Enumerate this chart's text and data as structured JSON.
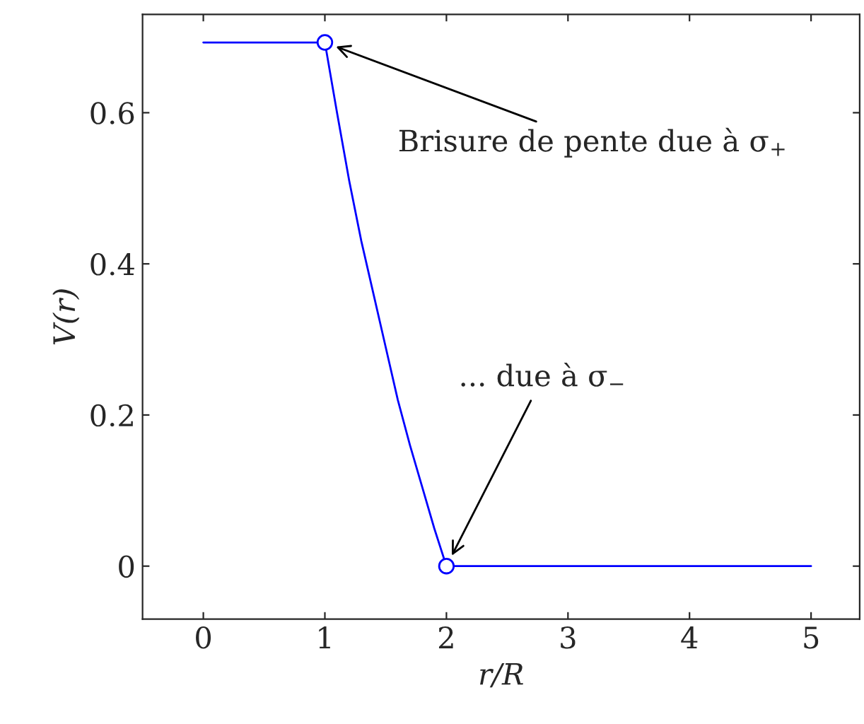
{
  "chart_data": {
    "type": "line",
    "xlabel": "r/R",
    "ylabel": "V(r)",
    "xlim": [
      -0.5,
      5.4
    ],
    "ylim": [
      -0.07,
      0.73
    ],
    "xticks": [
      0,
      1,
      2,
      3,
      4,
      5
    ],
    "yticks": [
      0,
      0.2,
      0.4,
      0.6
    ],
    "grid": false,
    "legend": false,
    "series": [
      {
        "color": "#0000ff",
        "marker": "none",
        "x": [
          0,
          1,
          1.1,
          1.2,
          1.3,
          1.4,
          1.5,
          1.6,
          1.7,
          1.8,
          1.9,
          2,
          5
        ],
        "values": [
          0.693,
          0.693,
          0.6,
          0.51,
          0.43,
          0.36,
          0.29,
          0.22,
          0.16,
          0.105,
          0.05,
          0,
          0
        ]
      },
      {
        "type": "scatter",
        "color": "#0000ff",
        "marker": "circle",
        "x": [
          1,
          2
        ],
        "values": [
          0.693,
          0
        ]
      }
    ],
    "annotations": [
      "Brisure de pente due à σ$_{+}$",
      "... due à σ$_{−}$"
    ]
  }
}
